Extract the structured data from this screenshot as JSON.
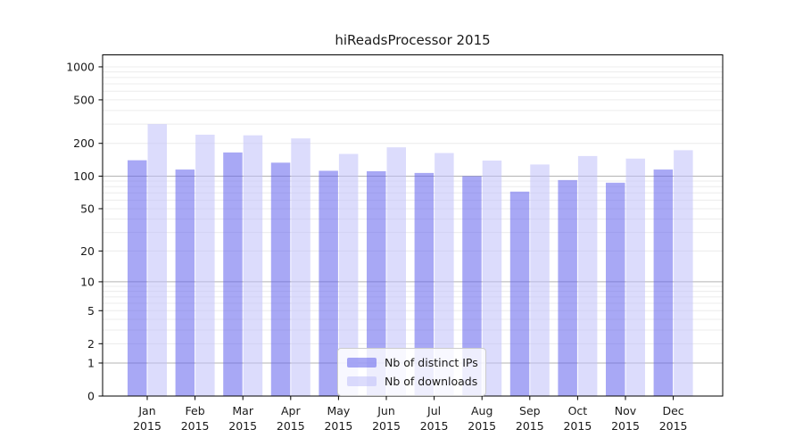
{
  "title": "hiReadsProcessor 2015",
  "chart_data": {
    "type": "bar",
    "scale": "log1p",
    "title": "hiReadsProcessor 2015",
    "categories": [
      "Jan",
      "Feb",
      "Mar",
      "Apr",
      "May",
      "Jun",
      "Jul",
      "Aug",
      "Sep",
      "Oct",
      "Nov",
      "Dec"
    ],
    "category_year": "2015",
    "series": [
      {
        "name": "Nb of distinct IPs",
        "color": "rgba(97,97,237,0.55)",
        "values": [
          140,
          115,
          165,
          133,
          112,
          111,
          107,
          100,
          72,
          92,
          87,
          115
        ]
      },
      {
        "name": "Nb of downloads",
        "color": "rgba(191,191,249,0.55)",
        "values": [
          300,
          240,
          237,
          222,
          160,
          184,
          163,
          139,
          128,
          153,
          145,
          173
        ]
      }
    ],
    "y_ticks": [
      0,
      1,
      2,
      5,
      10,
      20,
      50,
      100,
      200,
      500,
      1000
    ],
    "ylim": [
      0,
      1287
    ],
    "xlabel": "",
    "ylabel": "",
    "grid": true,
    "legend_position": "bottom-center",
    "colors": {
      "major_grid": "#b3b3b3",
      "minor_grid": "#ececec",
      "axis": "#000000",
      "tick_label": "#1a1a1a"
    }
  }
}
